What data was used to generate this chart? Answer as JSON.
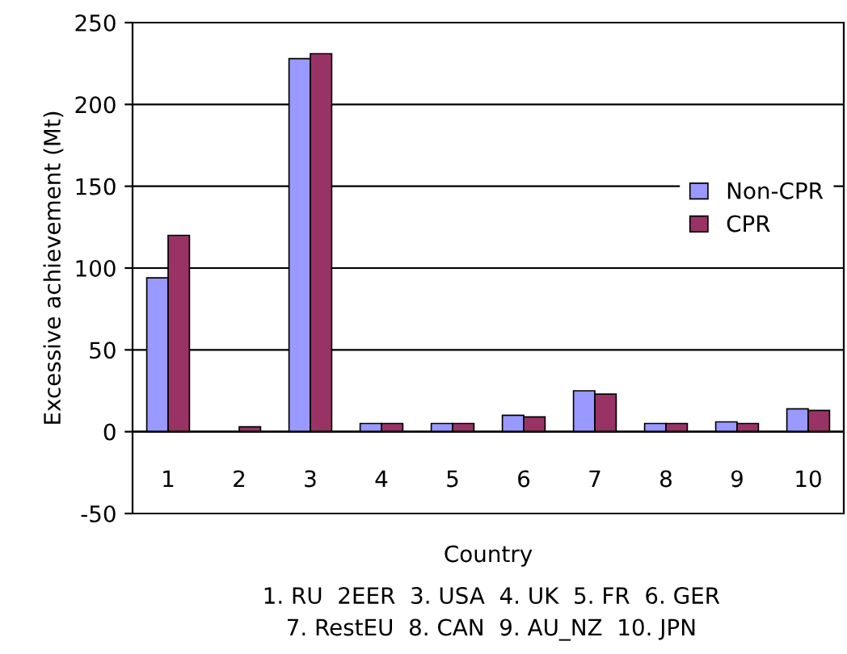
{
  "chart_data": {
    "type": "bar",
    "xlabel": "Country",
    "ylabel": "Excessive achievement (Mt)",
    "categories": [
      "1",
      "2",
      "3",
      "4",
      "5",
      "6",
      "7",
      "8",
      "9",
      "10"
    ],
    "series": [
      {
        "name": "Non-CPR",
        "color": "#9999ff",
        "values": [
          94,
          0,
          228,
          5,
          5,
          10,
          25,
          5,
          6,
          14
        ]
      },
      {
        "name": "CPR",
        "color": "#993366",
        "values": [
          120,
          3,
          231,
          5,
          5,
          9,
          23,
          5,
          5,
          13
        ]
      }
    ],
    "ylim": [
      -50,
      250
    ],
    "yticks": [
      -50,
      0,
      50,
      100,
      150,
      200,
      250
    ],
    "grid": "y",
    "legend": "right",
    "annotations": [
      "1. RU  2EER  3. USA  4. UK  5. FR  6. GER",
      "7. RestEU  8. CAN  9. AU_NZ  10. JPN"
    ]
  }
}
